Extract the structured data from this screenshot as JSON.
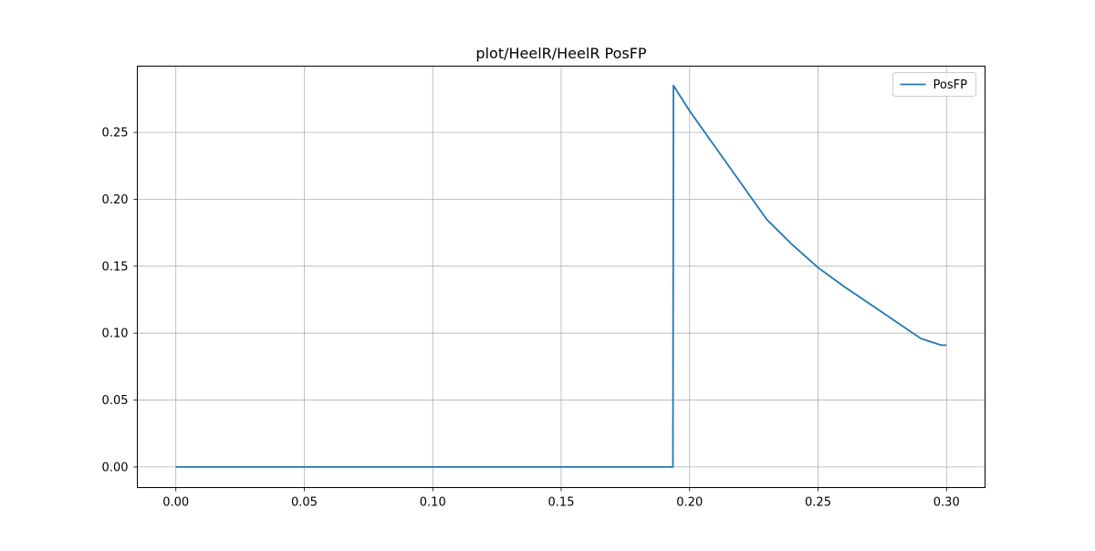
{
  "chart_data": {
    "type": "line",
    "title": "plot/HeelR/HeelR PosFP",
    "xlabel": "",
    "ylabel": "",
    "xlim": [
      -0.015,
      0.315
    ],
    "ylim": [
      -0.0154,
      0.2995
    ],
    "xticks": [
      0.0,
      0.05,
      0.1,
      0.15,
      0.2,
      0.25,
      0.3
    ],
    "xtick_labels": [
      "0.00",
      "0.05",
      "0.10",
      "0.15",
      "0.20",
      "0.25",
      "0.30"
    ],
    "yticks": [
      0.0,
      0.05,
      0.1,
      0.15,
      0.2,
      0.25
    ],
    "ytick_labels": [
      "0.00",
      "0.05",
      "0.10",
      "0.15",
      "0.20",
      "0.25"
    ],
    "grid": true,
    "legend": {
      "position": "top-right"
    },
    "series": [
      {
        "name": "PosFP",
        "color": "#1f77b4",
        "x": [
          0.0,
          0.1935,
          0.1937,
          0.2,
          0.21,
          0.22,
          0.23,
          0.24,
          0.25,
          0.26,
          0.27,
          0.28,
          0.29,
          0.298,
          0.3
        ],
        "y": [
          0.0,
          0.0,
          0.285,
          0.266,
          0.239,
          0.212,
          0.185,
          0.166,
          0.149,
          0.135,
          0.122,
          0.109,
          0.096,
          0.091,
          0.091
        ]
      }
    ]
  }
}
